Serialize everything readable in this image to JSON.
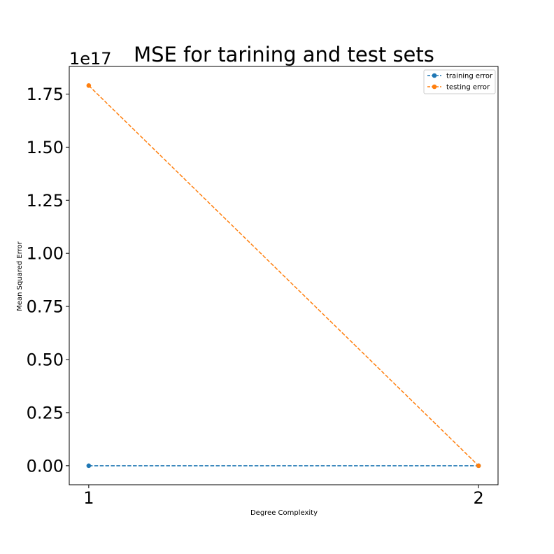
{
  "chart_data": {
    "type": "line",
    "title": "MSE for tarining and test sets",
    "xlabel": "Degree Complexity",
    "ylabel": "Mean Squared Error",
    "y_offset_text": "1e17",
    "x": [
      1,
      2
    ],
    "x_ticks": [
      1,
      2
    ],
    "x_tick_labels": [
      "1",
      "2"
    ],
    "y_ticks": [
      0.0,
      0.25,
      0.5,
      0.75,
      1.0,
      1.25,
      1.5,
      1.75
    ],
    "y_tick_labels": [
      "0.00",
      "0.25",
      "0.50",
      "0.75",
      "1.00",
      "1.25",
      "1.50",
      "1.75"
    ],
    "xlim": [
      0.95,
      2.05
    ],
    "ylim": [
      -0.0895,
      1.88
    ],
    "series": [
      {
        "name": "training error",
        "values": [
          0.0,
          0.0
        ],
        "color": "#1f77b4",
        "linestyle": "dashed",
        "marker": "circle"
      },
      {
        "name": "testing error",
        "values": [
          1.79,
          0.0
        ],
        "color": "#ff7f0e",
        "linestyle": "dashed",
        "marker": "circle"
      }
    ],
    "legend_position": "top-right",
    "grid": false
  }
}
